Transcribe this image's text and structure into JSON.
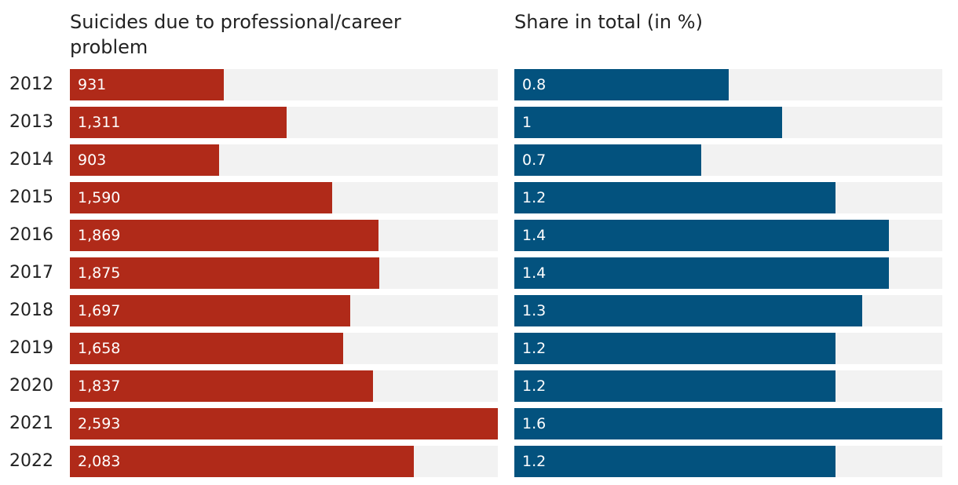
{
  "chart_data": [
    {
      "type": "bar",
      "orientation": "horizontal",
      "title": "Suicides due to professional/career problem",
      "categories": [
        "2012",
        "2013",
        "2014",
        "2015",
        "2016",
        "2017",
        "2018",
        "2019",
        "2020",
        "2021",
        "2022"
      ],
      "values": [
        931,
        1311,
        903,
        1590,
        1869,
        1875,
        1697,
        1658,
        1837,
        2593,
        2083
      ],
      "value_labels": [
        "931",
        "1,311",
        "903",
        "1,590",
        "1,869",
        "1,875",
        "1,697",
        "1,658",
        "1,837",
        "2,593",
        "2,083"
      ],
      "xlim": [
        0,
        2593
      ],
      "color": "#b02a19",
      "track_color": "#f2f2f2",
      "grid": false
    },
    {
      "type": "bar",
      "orientation": "horizontal",
      "title": "Share in total (in %)",
      "categories": [
        "2012",
        "2013",
        "2014",
        "2015",
        "2016",
        "2017",
        "2018",
        "2019",
        "2020",
        "2021",
        "2022"
      ],
      "values": [
        0.8,
        1,
        0.7,
        1.2,
        1.4,
        1.4,
        1.3,
        1.2,
        1.2,
        1.6,
        1.2
      ],
      "value_labels": [
        "0.8",
        "1",
        "0.7",
        "1.2",
        "1.4",
        "1.4",
        "1.3",
        "1.2",
        "1.2",
        "1.6",
        "1.2"
      ],
      "xlim": [
        0,
        1.6
      ],
      "color": "#03527e",
      "track_color": "#f2f2f2",
      "grid": false
    }
  ]
}
